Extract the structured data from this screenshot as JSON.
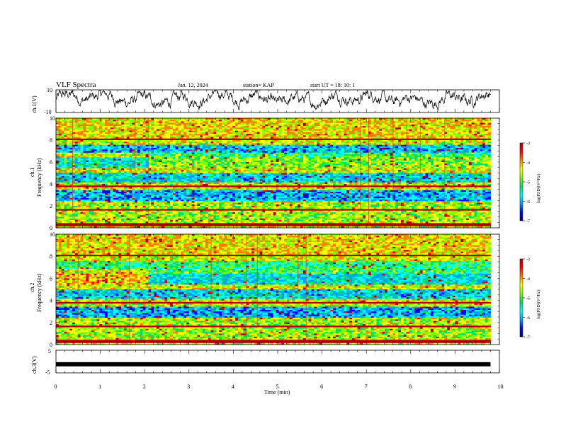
{
  "header": {
    "title": "VLF Spectra",
    "date": "Jan. 12, 2024",
    "station": "station= KAP",
    "start_ut": "start UT =   18: 10: 1"
  },
  "colors": {
    "waveform": "#000000",
    "colormap": [
      "#000080",
      "#0000ff",
      "#00a0ff",
      "#00ffff",
      "#00e060",
      "#7fff00",
      "#ffff00",
      "#ff8000",
      "#ff0000",
      "#b00000"
    ]
  },
  "chart_data": [
    {
      "type": "line",
      "name": "ch1-waveform",
      "ylabel": "ch.1(V)",
      "ylim": [
        -10,
        10
      ],
      "yticks": [
        "10",
        "-10"
      ],
      "xlim": [
        0,
        10
      ],
      "description_of_values": "dense noise waveform, mostly between about -3 and +7 V"
    },
    {
      "type": "heatmap",
      "name": "ch1-spectrogram",
      "ylabel_top": "ch.1",
      "ylabel": "Frequency (kHz)",
      "ylim": [
        0,
        10
      ],
      "yticks": [
        "0",
        "2",
        "4",
        "6",
        "8",
        "10"
      ],
      "xlim": [
        0,
        9.8
      ],
      "colorbar": {
        "ticks": [
          "-3",
          "-4",
          "-5",
          "-6",
          "-7"
        ],
        "label": "log(PSD)(V²/Hz)",
        "range": [
          -7,
          -3
        ]
      }
    },
    {
      "type": "heatmap",
      "name": "ch2-spectrogram",
      "ylabel_top": "ch.2",
      "ylabel": "Frequency (kHz)",
      "ylim": [
        0,
        10
      ],
      "yticks": [
        "0",
        "2",
        "4",
        "6",
        "8",
        "10"
      ],
      "xlim": [
        0,
        9.8
      ],
      "colorbar": {
        "ticks": [
          "-3",
          "-4",
          "-5",
          "-6",
          "-7"
        ],
        "label": "log(PSD)(V²/Hz)",
        "range": [
          -7,
          -3
        ]
      }
    },
    {
      "type": "line",
      "name": "ch3-waveform",
      "ylabel": "ch.3(V)",
      "ylim": [
        -5,
        5
      ],
      "yticks": [
        "5",
        "-5"
      ],
      "xlim": [
        0,
        10
      ],
      "value": -1.2
    }
  ],
  "xaxis": {
    "label": "Time  (min)",
    "ticks": [
      "0",
      "1",
      "2",
      "3",
      "4",
      "5",
      "6",
      "7",
      "8",
      "9",
      "10"
    ]
  }
}
